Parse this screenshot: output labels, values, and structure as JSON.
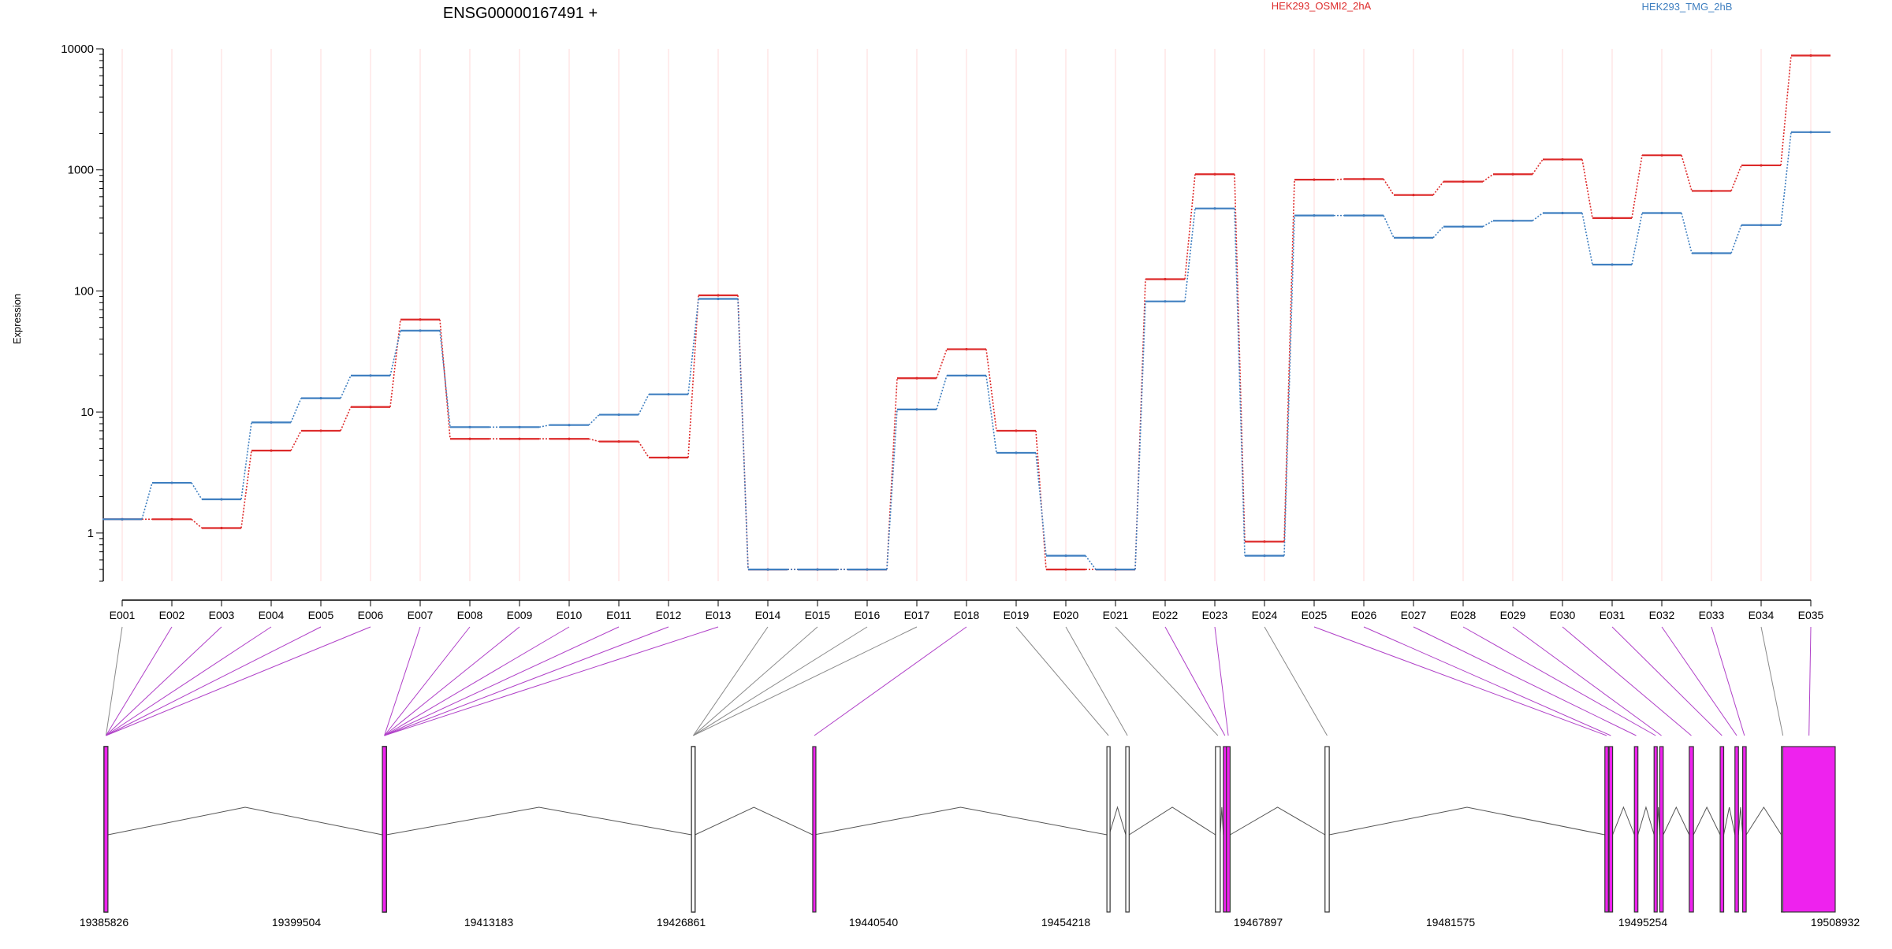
{
  "title": "ENSG00000167491 +",
  "colors": {
    "cond1": "#dd2a2a",
    "cond2": "#3f7fc0",
    "exon_sig": "#ee22ee",
    "exon_nonsig": "#ffffff",
    "connector_sig": "#b040c8",
    "connector_nonsig": "#8a8a8a",
    "grid": "#ffd8d8"
  },
  "chart_data": {
    "type": "line",
    "title": "ENSG00000167491 +",
    "ylabel": "Expression",
    "yscale": "log",
    "ylim": [
      0.4,
      10000
    ],
    "yticks": [
      "1",
      "10",
      "100",
      "1000",
      "10000"
    ],
    "categories": [
      "E001",
      "E002",
      "E003",
      "E004",
      "E005",
      "E006",
      "E007",
      "E008",
      "E009",
      "E010",
      "E011",
      "E012",
      "E013",
      "E014",
      "E015",
      "E016",
      "E017",
      "E018",
      "E019",
      "E020",
      "E021",
      "E022",
      "E023",
      "E024",
      "E025",
      "E026",
      "E027",
      "E028",
      "E029",
      "E030",
      "E031",
      "E032",
      "E033",
      "E034",
      "E035"
    ],
    "series": [
      {
        "name": "HEK293_OSMI2_2hA",
        "color": "#dd2a2a",
        "values": [
          1.3,
          1.3,
          1.1,
          4.8,
          7,
          11,
          58,
          6,
          6,
          6,
          5.7,
          4.2,
          92,
          0.5,
          0.5,
          0.5,
          19,
          33,
          7,
          0.5,
          0.5,
          125,
          920,
          0.85,
          830,
          840,
          620,
          800,
          920,
          1220,
          400,
          1320,
          670,
          1090,
          8800
        ]
      },
      {
        "name": "HEK293_TMG_2hB",
        "color": "#3f7fc0",
        "values": [
          1.3,
          2.6,
          1.9,
          8.2,
          13,
          20,
          47,
          7.5,
          7.5,
          7.8,
          9.5,
          14,
          86,
          0.5,
          0.5,
          0.5,
          10.5,
          20,
          4.6,
          0.65,
          0.5,
          82,
          480,
          0.65,
          420,
          420,
          275,
          340,
          380,
          440,
          165,
          440,
          205,
          350,
          2050
        ]
      }
    ],
    "significant": [
      false,
      true,
      true,
      true,
      true,
      true,
      true,
      true,
      true,
      true,
      true,
      true,
      true,
      false,
      false,
      false,
      false,
      true,
      false,
      false,
      false,
      true,
      true,
      false,
      true,
      true,
      true,
      true,
      true,
      true,
      true,
      true,
      true,
      false,
      true
    ],
    "genomic_axis": {
      "start": 19385826,
      "end": 19508932,
      "tick_labels": [
        "19385826",
        "19399504",
        "19413183",
        "19426861",
        "19440540",
        "19454218",
        "19467897",
        "19481575",
        "19495254",
        "19508932"
      ]
    },
    "exon_coords": [
      [
        19385826,
        19386100
      ],
      [
        19385826,
        19386100
      ],
      [
        19385826,
        19386100
      ],
      [
        19385826,
        19386100
      ],
      [
        19385826,
        19386100
      ],
      [
        19385826,
        19386100
      ],
      [
        19405620,
        19405900
      ],
      [
        19405620,
        19405900
      ],
      [
        19405620,
        19405900
      ],
      [
        19405620,
        19405900
      ],
      [
        19405620,
        19405900
      ],
      [
        19405620,
        19405900
      ],
      [
        19405620,
        19405900
      ],
      [
        19427600,
        19427850
      ],
      [
        19427600,
        19427850
      ],
      [
        19427600,
        19427850
      ],
      [
        19427600,
        19427850
      ],
      [
        19436220,
        19436320
      ],
      [
        19457140,
        19457300
      ],
      [
        19458480,
        19458720
      ],
      [
        19464860,
        19465200
      ],
      [
        19465420,
        19465620
      ],
      [
        19465640,
        19465900
      ],
      [
        19472650,
        19472950
      ],
      [
        19492550,
        19492800
      ],
      [
        19492850,
        19493100
      ],
      [
        19494650,
        19494900
      ],
      [
        19496050,
        19496250
      ],
      [
        19496450,
        19496700
      ],
      [
        19498550,
        19498850
      ],
      [
        19500750,
        19501000
      ],
      [
        19501800,
        19502050
      ],
      [
        19502350,
        19502600
      ],
      [
        19505100,
        19505300
      ],
      [
        19505200,
        19508930
      ]
    ]
  }
}
